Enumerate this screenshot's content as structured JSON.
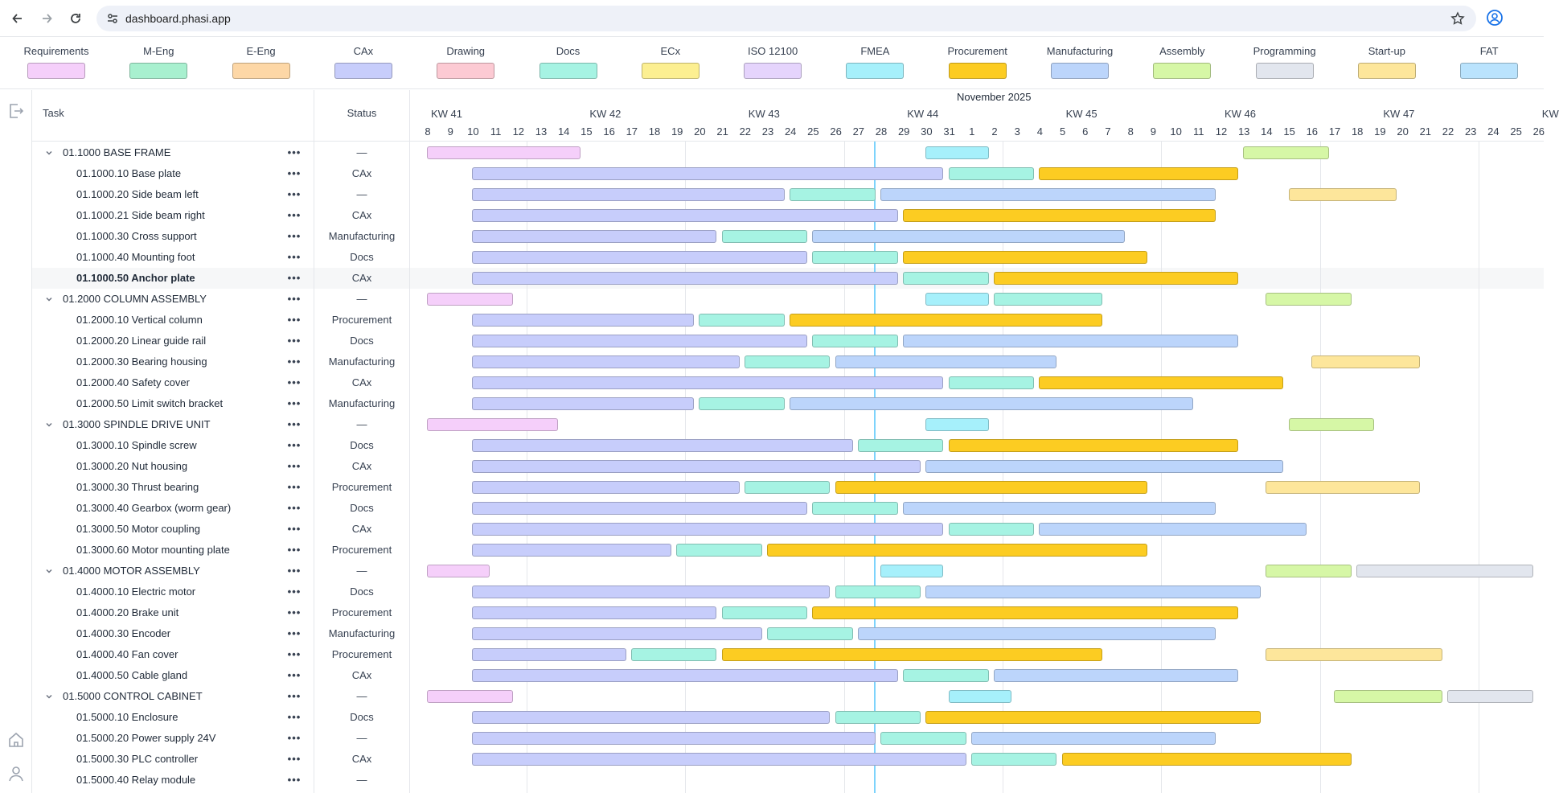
{
  "browser": {
    "url": "dashboard.phasi.app",
    "back_icon": "arrow-left-icon",
    "forward_icon": "arrow-right-icon",
    "reload_icon": "reload-icon",
    "bookmark_icon": "star-icon",
    "profile_icon": "account-circle-icon"
  },
  "legend": [
    {
      "label": "Requirements",
      "color": "#f5cffa"
    },
    {
      "label": "M-Eng",
      "color": "#a8f0cf"
    },
    {
      "label": "E-Eng",
      "color": "#fdd7a6"
    },
    {
      "label": "CAx",
      "color": "#c7cdfb"
    },
    {
      "label": "Drawing",
      "color": "#fccad3"
    },
    {
      "label": "Docs",
      "color": "#a6f3e3"
    },
    {
      "label": "ECx",
      "color": "#fcef91"
    },
    {
      "label": "ISO 12100",
      "color": "#e5d4fc"
    },
    {
      "label": "FMEA",
      "color": "#a6f0fb"
    },
    {
      "label": "Procurement",
      "color": "#fccc22"
    },
    {
      "label": "Manufacturing",
      "color": "#bcd5fb"
    },
    {
      "label": "Assembly",
      "color": "#d6f7a6"
    },
    {
      "label": "Programming",
      "color": "#e2e6ee"
    },
    {
      "label": "Start-up",
      "color": "#fde69b"
    },
    {
      "label": "FAT",
      "color": "#bae3fd"
    }
  ],
  "table": {
    "task_header": "Task",
    "status_header": "Status",
    "menu_glyph": "•••"
  },
  "timeline": {
    "month": "November 2025",
    "weeks": [
      "KW 41",
      "KW 42",
      "KW 43",
      "KW 44",
      "KW 45",
      "KW 46",
      "KW 47",
      "KW"
    ],
    "days": [
      "8",
      "9",
      "10",
      "11",
      "12",
      "13",
      "14",
      "15",
      "16",
      "17",
      "18",
      "19",
      "20",
      "21",
      "22",
      "23",
      "24",
      "25",
      "26",
      "27",
      "28",
      "29",
      "30",
      "31",
      "1",
      "2",
      "3",
      "4",
      "5",
      "6",
      "7",
      "8",
      "9",
      "10",
      "11",
      "12",
      "13",
      "14",
      "15",
      "16",
      "17",
      "18",
      "19",
      "20",
      "21",
      "22",
      "23",
      "24",
      "25",
      "26"
    ],
    "today_index": 19.5
  },
  "rows": [
    {
      "name": "01.1000 BASE FRAME",
      "status": "—",
      "group": true,
      "bars": [
        {
          "phase": 0,
          "start": 0,
          "end": 6
        },
        {
          "phase": 8,
          "start": 22,
          "end": 24
        },
        {
          "phase": 11,
          "start": 36,
          "end": 39
        }
      ]
    },
    {
      "name": "01.1000.10 Base plate",
      "status": "CAx",
      "bars": [
        {
          "phase": 3,
          "start": 2,
          "end": 22
        },
        {
          "phase": 5,
          "start": 23,
          "end": 26
        },
        {
          "phase": 9,
          "start": 27,
          "end": 35
        }
      ]
    },
    {
      "name": "01.1000.20 Side beam left",
      "status": "—",
      "bars": [
        {
          "phase": 3,
          "start": 2,
          "end": 15
        },
        {
          "phase": 5,
          "start": 16,
          "end": 19
        },
        {
          "phase": 10,
          "start": 20,
          "end": 34
        },
        {
          "phase": 13,
          "start": 38,
          "end": 42
        }
      ]
    },
    {
      "name": "01.1000.21 Side beam right",
      "status": "CAx",
      "bars": [
        {
          "phase": 3,
          "start": 2,
          "end": 20
        },
        {
          "phase": 9,
          "start": 21,
          "end": 34
        }
      ]
    },
    {
      "name": "01.1000.30 Cross support",
      "status": "Manufacturing",
      "bars": [
        {
          "phase": 3,
          "start": 2,
          "end": 12
        },
        {
          "phase": 5,
          "start": 13,
          "end": 16
        },
        {
          "phase": 10,
          "start": 17,
          "end": 30
        }
      ]
    },
    {
      "name": "01.1000.40 Mounting foot",
      "status": "Docs",
      "bars": [
        {
          "phase": 3,
          "start": 2,
          "end": 16
        },
        {
          "phase": 5,
          "start": 17,
          "end": 20
        },
        {
          "phase": 9,
          "start": 21,
          "end": 31
        }
      ]
    },
    {
      "name": "01.1000.50 Anchor plate",
      "status": "CAx",
      "bold": true,
      "highlight": true,
      "bars": [
        {
          "phase": 3,
          "start": 2,
          "end": 20
        },
        {
          "phase": 5,
          "start": 21,
          "end": 24
        },
        {
          "phase": 9,
          "start": 25,
          "end": 35
        }
      ]
    },
    {
      "name": "01.2000 COLUMN ASSEMBLY",
      "status": "—",
      "group": true,
      "bars": [
        {
          "phase": 0,
          "start": 0,
          "end": 3
        },
        {
          "phase": 8,
          "start": 22,
          "end": 24
        },
        {
          "phase": 5,
          "start": 25,
          "end": 29
        },
        {
          "phase": 11,
          "start": 37,
          "end": 40
        }
      ]
    },
    {
      "name": "01.2000.10 Vertical column",
      "status": "Procurement",
      "bars": [
        {
          "phase": 3,
          "start": 2,
          "end": 11
        },
        {
          "phase": 5,
          "start": 12,
          "end": 15
        },
        {
          "phase": 9,
          "start": 16,
          "end": 29
        }
      ]
    },
    {
      "name": "01.2000.20 Linear guide rail",
      "status": "Docs",
      "bars": [
        {
          "phase": 3,
          "start": 2,
          "end": 16
        },
        {
          "phase": 5,
          "start": 17,
          "end": 20
        },
        {
          "phase": 10,
          "start": 21,
          "end": 35
        }
      ]
    },
    {
      "name": "01.2000.30 Bearing housing",
      "status": "Manufacturing",
      "bars": [
        {
          "phase": 3,
          "start": 2,
          "end": 13
        },
        {
          "phase": 5,
          "start": 14,
          "end": 17
        },
        {
          "phase": 10,
          "start": 18,
          "end": 27
        },
        {
          "phase": 13,
          "start": 39,
          "end": 43
        }
      ]
    },
    {
      "name": "01.2000.40 Safety cover",
      "status": "CAx",
      "bars": [
        {
          "phase": 3,
          "start": 2,
          "end": 22
        },
        {
          "phase": 5,
          "start": 23,
          "end": 26
        },
        {
          "phase": 9,
          "start": 27,
          "end": 37
        }
      ]
    },
    {
      "name": "01.2000.50 Limit switch bracket",
      "status": "Manufacturing",
      "bars": [
        {
          "phase": 3,
          "start": 2,
          "end": 11
        },
        {
          "phase": 5,
          "start": 12,
          "end": 15
        },
        {
          "phase": 10,
          "start": 16,
          "end": 33
        }
      ]
    },
    {
      "name": "01.3000 SPINDLE DRIVE UNIT",
      "status": "—",
      "group": true,
      "bars": [
        {
          "phase": 0,
          "start": 0,
          "end": 5
        },
        {
          "phase": 8,
          "start": 22,
          "end": 24
        },
        {
          "phase": 11,
          "start": 38,
          "end": 41
        }
      ]
    },
    {
      "name": "01.3000.10 Spindle screw",
      "status": "Docs",
      "bars": [
        {
          "phase": 3,
          "start": 2,
          "end": 18
        },
        {
          "phase": 5,
          "start": 19,
          "end": 22
        },
        {
          "phase": 9,
          "start": 23,
          "end": 35
        }
      ]
    },
    {
      "name": "01.3000.20 Nut housing",
      "status": "CAx",
      "bars": [
        {
          "phase": 3,
          "start": 2,
          "end": 21
        },
        {
          "phase": 10,
          "start": 22,
          "end": 37
        }
      ]
    },
    {
      "name": "01.3000.30 Thrust bearing",
      "status": "Procurement",
      "bars": [
        {
          "phase": 3,
          "start": 2,
          "end": 13
        },
        {
          "phase": 5,
          "start": 14,
          "end": 17
        },
        {
          "phase": 9,
          "start": 18,
          "end": 31
        },
        {
          "phase": 13,
          "start": 37,
          "end": 43
        }
      ]
    },
    {
      "name": "01.3000.40 Gearbox (worm gear)",
      "status": "Docs",
      "bars": [
        {
          "phase": 3,
          "start": 2,
          "end": 16
        },
        {
          "phase": 5,
          "start": 17,
          "end": 20
        },
        {
          "phase": 10,
          "start": 21,
          "end": 34
        }
      ]
    },
    {
      "name": "01.3000.50 Motor coupling",
      "status": "CAx",
      "bars": [
        {
          "phase": 3,
          "start": 2,
          "end": 22
        },
        {
          "phase": 5,
          "start": 23,
          "end": 26
        },
        {
          "phase": 10,
          "start": 27,
          "end": 38
        }
      ]
    },
    {
      "name": "01.3000.60 Motor mounting plate",
      "status": "Procurement",
      "bars": [
        {
          "phase": 3,
          "start": 2,
          "end": 10
        },
        {
          "phase": 5,
          "start": 11,
          "end": 14
        },
        {
          "phase": 9,
          "start": 15,
          "end": 31
        }
      ]
    },
    {
      "name": "01.4000 MOTOR ASSEMBLY",
      "status": "—",
      "group": true,
      "bars": [
        {
          "phase": 0,
          "start": 0,
          "end": 2
        },
        {
          "phase": 8,
          "start": 20,
          "end": 22
        },
        {
          "phase": 11,
          "start": 37,
          "end": 40
        },
        {
          "phase": 12,
          "start": 41,
          "end": 48
        }
      ]
    },
    {
      "name": "01.4000.10 Electric motor",
      "status": "Docs",
      "bars": [
        {
          "phase": 3,
          "start": 2,
          "end": 17
        },
        {
          "phase": 5,
          "start": 18,
          "end": 21
        },
        {
          "phase": 10,
          "start": 22,
          "end": 36
        }
      ]
    },
    {
      "name": "01.4000.20 Brake unit",
      "status": "Procurement",
      "bars": [
        {
          "phase": 3,
          "start": 2,
          "end": 12
        },
        {
          "phase": 5,
          "start": 13,
          "end": 16
        },
        {
          "phase": 9,
          "start": 17,
          "end": 35
        }
      ]
    },
    {
      "name": "01.4000.30 Encoder",
      "status": "Manufacturing",
      "bars": [
        {
          "phase": 3,
          "start": 2,
          "end": 14
        },
        {
          "phase": 5,
          "start": 15,
          "end": 18
        },
        {
          "phase": 10,
          "start": 19,
          "end": 34
        }
      ]
    },
    {
      "name": "01.4000.40 Fan cover",
      "status": "Procurement",
      "bars": [
        {
          "phase": 3,
          "start": 2,
          "end": 8
        },
        {
          "phase": 5,
          "start": 9,
          "end": 12
        },
        {
          "phase": 9,
          "start": 13,
          "end": 29
        },
        {
          "phase": 13,
          "start": 37,
          "end": 44
        }
      ]
    },
    {
      "name": "01.4000.50 Cable gland",
      "status": "CAx",
      "bars": [
        {
          "phase": 3,
          "start": 2,
          "end": 20
        },
        {
          "phase": 5,
          "start": 21,
          "end": 24
        },
        {
          "phase": 10,
          "start": 25,
          "end": 35
        }
      ]
    },
    {
      "name": "01.5000 CONTROL CABINET",
      "status": "—",
      "group": true,
      "bars": [
        {
          "phase": 0,
          "start": 0,
          "end": 3
        },
        {
          "phase": 8,
          "start": 23,
          "end": 25
        },
        {
          "phase": 11,
          "start": 40,
          "end": 44
        },
        {
          "phase": 12,
          "start": 45,
          "end": 48
        }
      ]
    },
    {
      "name": "01.5000.10 Enclosure",
      "status": "Docs",
      "bars": [
        {
          "phase": 3,
          "start": 2,
          "end": 17
        },
        {
          "phase": 5,
          "start": 18,
          "end": 21
        },
        {
          "phase": 9,
          "start": 22,
          "end": 36
        }
      ]
    },
    {
      "name": "01.5000.20 Power supply 24V",
      "status": "—",
      "bars": [
        {
          "phase": 3,
          "start": 2,
          "end": 19
        },
        {
          "phase": 5,
          "start": 20,
          "end": 23
        },
        {
          "phase": 10,
          "start": 24,
          "end": 34
        }
      ]
    },
    {
      "name": "01.5000.30 PLC controller",
      "status": "CAx",
      "bars": [
        {
          "phase": 3,
          "start": 2,
          "end": 23
        },
        {
          "phase": 5,
          "start": 24,
          "end": 27
        },
        {
          "phase": 9,
          "start": 28,
          "end": 40
        }
      ]
    },
    {
      "name": "01.5000.40 Relay module",
      "status": "—",
      "bars": []
    }
  ]
}
